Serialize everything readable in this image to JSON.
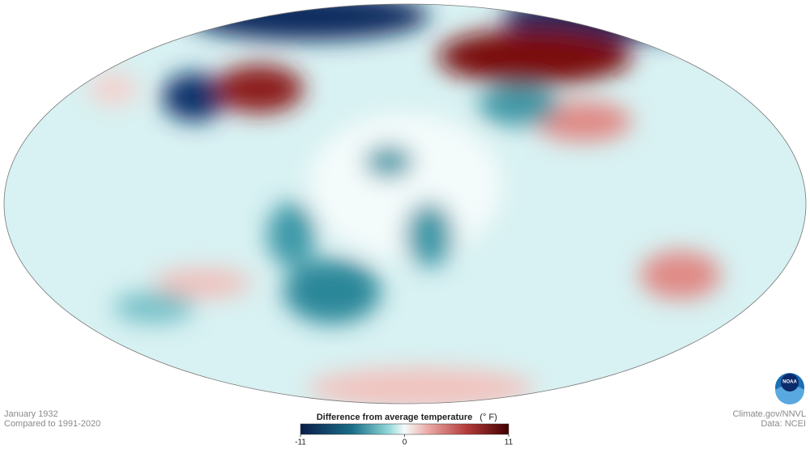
{
  "caption": {
    "date": "January 1932",
    "baseline": "Compared to 1991-2020"
  },
  "legend": {
    "title": "Difference from average temperature",
    "unit": "(° F)",
    "range": [
      -11,
      11
    ],
    "ticks": [
      -11,
      0,
      11
    ]
  },
  "credits": {
    "source": "Climate.gov/NNVL",
    "data": "Data: NCEI",
    "logo": "NOAA"
  }
}
